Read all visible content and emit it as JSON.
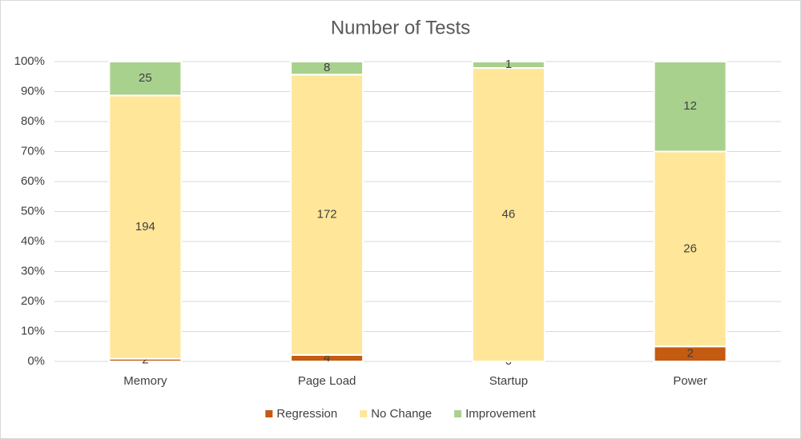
{
  "chart_data": {
    "type": "bar",
    "stacking": "percent",
    "title": "Number of Tests",
    "categories": [
      "Memory",
      "Page Load",
      "Startup",
      "Power"
    ],
    "series": [
      {
        "name": "Regression",
        "color": "#c55a11",
        "values": [
          2,
          4,
          0,
          2
        ]
      },
      {
        "name": "No Change",
        "color": "#ffe699",
        "values": [
          194,
          172,
          46,
          26
        ]
      },
      {
        "name": "Improvement",
        "color": "#a9d18e",
        "values": [
          25,
          8,
          1,
          12
        ]
      }
    ],
    "ylim": [
      0,
      100
    ],
    "yticks": [
      {
        "value": 0,
        "label": "0%"
      },
      {
        "value": 10,
        "label": "10%"
      },
      {
        "value": 20,
        "label": "20%"
      },
      {
        "value": 30,
        "label": "30%"
      },
      {
        "value": 40,
        "label": "40%"
      },
      {
        "value": 50,
        "label": "50%"
      },
      {
        "value": 60,
        "label": "60%"
      },
      {
        "value": 70,
        "label": "70%"
      },
      {
        "value": 80,
        "label": "80%"
      },
      {
        "value": 90,
        "label": "90%"
      },
      {
        "value": 100,
        "label": "100%"
      }
    ],
    "grid": true,
    "legend": "bottom"
  }
}
